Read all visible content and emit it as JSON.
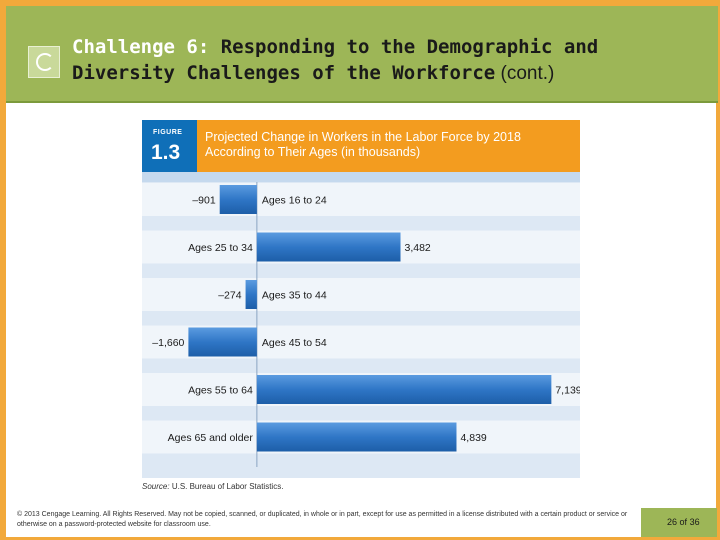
{
  "slide": {
    "title_prefix": "Challenge 6:",
    "title_main": " Responding to the Demographic and Diversity Challenges of the Workforce",
    "title_suffix": " (cont.)",
    "footer_copyright": "© 2013 Cengage Learning. All Rights Reserved. May not be copied, scanned, or duplicated, in whole or in part, except for use as permitted in a license distributed with a certain product or service or otherwise on a password-protected website for classroom use.",
    "page_current": "26",
    "page_sep": "of",
    "page_total": "36",
    "colors": {
      "header_green": "#9db657",
      "frame_orange": "#f2a93b",
      "bar_blue": "#2f76c6"
    }
  },
  "figure": {
    "label": "FIGURE",
    "number": "1.3",
    "title_line1": "Projected Change in Workers in the Labor Force by 2018",
    "title_line2": "According to Their Ages (in thousands)",
    "source_label": "Source:",
    "source_text": "U.S. Bureau of Labor Statistics."
  },
  "chart_data": {
    "type": "bar",
    "orientation": "horizontal",
    "title": "Projected Change in Workers in the Labor Force by 2018 According to Their Ages (in thousands)",
    "categories": [
      "Ages 16 to 24",
      "Ages 25 to 34",
      "Ages 35 to 44",
      "Ages 45 to 54",
      "Ages 55 to 64",
      "Ages 65 and older"
    ],
    "values": [
      -901,
      3482,
      -274,
      -1660,
      7139,
      4839
    ],
    "value_labels": [
      "–901",
      "3,482",
      "–274",
      "–1,660",
      "7,139",
      "4,839"
    ],
    "xlim": [
      -2300,
      7300
    ],
    "grid": false,
    "legend": "none"
  }
}
